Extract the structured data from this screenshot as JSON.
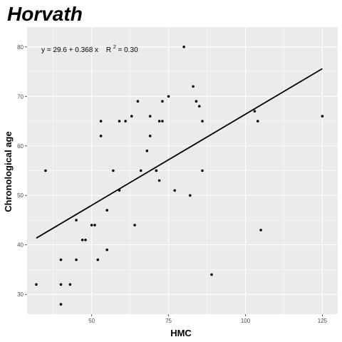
{
  "chart_data": {
    "type": "scatter",
    "title": "Horvath",
    "xlabel": "HMC",
    "ylabel": "Chronological age",
    "xlim": [
      29,
      130
    ],
    "ylim": [
      26,
      84
    ],
    "xticks": [
      50,
      75,
      100,
      125
    ],
    "yticks": [
      30,
      40,
      50,
      60,
      70,
      80
    ],
    "grid": true,
    "background": "#ebebeb",
    "grid_color": "#ffffff",
    "point_color": "#000000",
    "annotation": {
      "eq_prefix": "y = 29.6 + 0.368 x",
      "r2_label": "R",
      "r2_sup": "2",
      "r2_value": " = 0.30"
    },
    "trendline": {
      "intercept": 29.6,
      "slope": 0.368,
      "x_range": [
        32,
        125
      ]
    },
    "points": [
      {
        "x": 32,
        "y": 32
      },
      {
        "x": 35,
        "y": 55
      },
      {
        "x": 40,
        "y": 37
      },
      {
        "x": 40,
        "y": 28
      },
      {
        "x": 40,
        "y": 32
      },
      {
        "x": 43,
        "y": 32
      },
      {
        "x": 45,
        "y": 37
      },
      {
        "x": 45,
        "y": 45
      },
      {
        "x": 47,
        "y": 41
      },
      {
        "x": 48,
        "y": 41
      },
      {
        "x": 50,
        "y": 44
      },
      {
        "x": 51,
        "y": 44
      },
      {
        "x": 52,
        "y": 37
      },
      {
        "x": 53,
        "y": 62
      },
      {
        "x": 53,
        "y": 65
      },
      {
        "x": 55,
        "y": 47
      },
      {
        "x": 55,
        "y": 39
      },
      {
        "x": 57,
        "y": 55
      },
      {
        "x": 59,
        "y": 51
      },
      {
        "x": 59,
        "y": 65
      },
      {
        "x": 61,
        "y": 65
      },
      {
        "x": 63,
        "y": 66
      },
      {
        "x": 64,
        "y": 44
      },
      {
        "x": 65,
        "y": 69
      },
      {
        "x": 66,
        "y": 55
      },
      {
        "x": 68,
        "y": 59
      },
      {
        "x": 69,
        "y": 62
      },
      {
        "x": 69,
        "y": 66
      },
      {
        "x": 71,
        "y": 55
      },
      {
        "x": 71,
        "y": 55
      },
      {
        "x": 72,
        "y": 53
      },
      {
        "x": 72,
        "y": 65
      },
      {
        "x": 73,
        "y": 65
      },
      {
        "x": 73,
        "y": 69
      },
      {
        "x": 75,
        "y": 70
      },
      {
        "x": 77,
        "y": 51
      },
      {
        "x": 80,
        "y": 80
      },
      {
        "x": 82,
        "y": 50
      },
      {
        "x": 83,
        "y": 72
      },
      {
        "x": 84,
        "y": 69
      },
      {
        "x": 85,
        "y": 68
      },
      {
        "x": 86,
        "y": 55
      },
      {
        "x": 86,
        "y": 65
      },
      {
        "x": 89,
        "y": 34
      },
      {
        "x": 103,
        "y": 67
      },
      {
        "x": 104,
        "y": 65
      },
      {
        "x": 105,
        "y": 43
      },
      {
        "x": 125,
        "y": 66
      }
    ]
  }
}
